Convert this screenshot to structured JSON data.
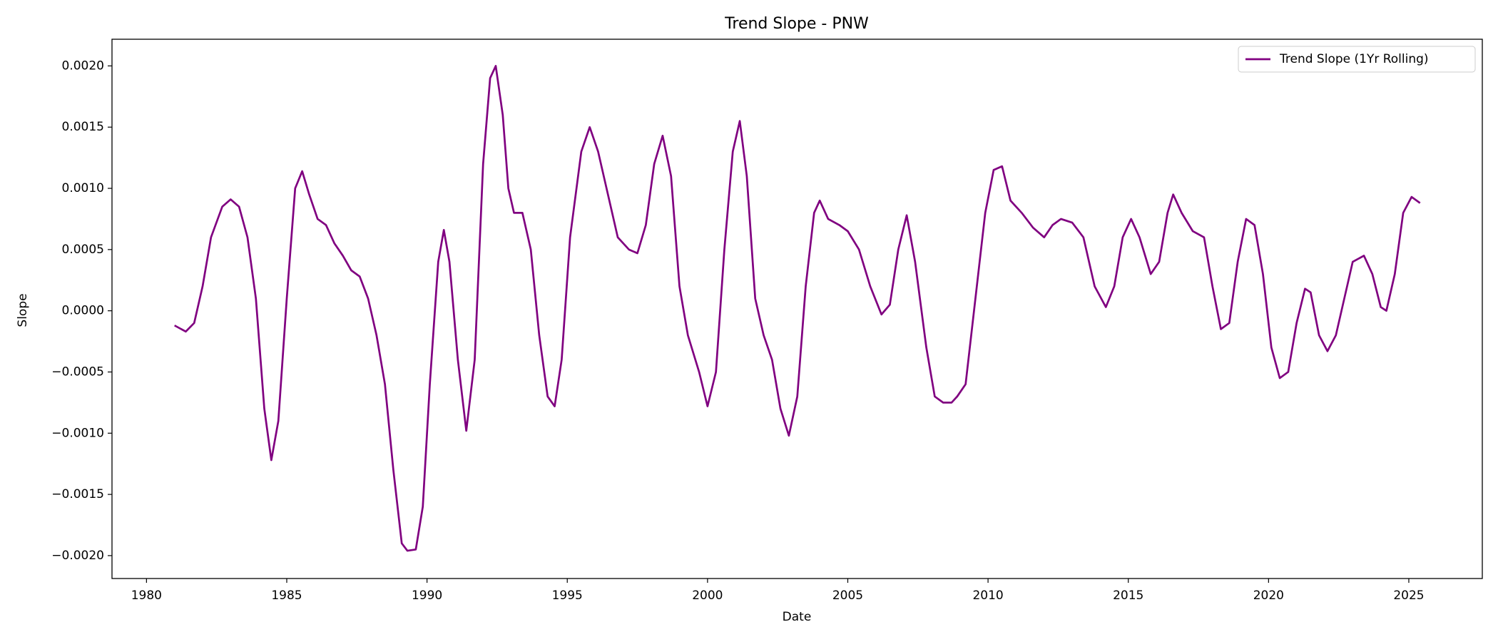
{
  "chart_data": {
    "type": "line",
    "title": "Trend Slope - PNW",
    "xlabel": "Date",
    "ylabel": "Slope",
    "x": [
      1981.0,
      1981.4,
      1981.7,
      1982.0,
      1982.3,
      1982.7,
      1983.0,
      1983.3,
      1983.6,
      1983.9,
      1984.2,
      1984.45,
      1984.7,
      1985.0,
      1985.3,
      1985.55,
      1985.8,
      1986.1,
      1986.4,
      1986.7,
      1987.0,
      1987.3,
      1987.6,
      1987.9,
      1988.2,
      1988.5,
      1988.8,
      1989.1,
      1989.3,
      1989.6,
      1989.85,
      1990.1,
      1990.4,
      1990.6,
      1990.8,
      1991.1,
      1991.4,
      1991.7,
      1992.0,
      1992.25,
      1992.45,
      1992.7,
      1992.9,
      1993.1,
      1993.4,
      1993.7,
      1994.0,
      1994.3,
      1994.55,
      1994.8,
      1995.1,
      1995.5,
      1995.8,
      1996.1,
      1996.5,
      1996.8,
      1997.2,
      1997.5,
      1997.8,
      1998.1,
      1998.4,
      1998.7,
      1999.0,
      1999.3,
      1999.7,
      2000.0,
      2000.3,
      2000.6,
      2000.9,
      2001.15,
      2001.4,
      2001.7,
      2002.0,
      2002.3,
      2002.6,
      2002.9,
      2003.2,
      2003.5,
      2003.8,
      2004.0,
      2004.3,
      2004.7,
      2005.0,
      2005.4,
      2005.8,
      2006.2,
      2006.5,
      2006.8,
      2007.1,
      2007.4,
      2007.8,
      2008.1,
      2008.4,
      2008.7,
      2008.9,
      2009.2,
      2009.5,
      2009.9,
      2010.2,
      2010.5,
      2010.8,
      2011.2,
      2011.6,
      2012.0,
      2012.3,
      2012.6,
      2013.0,
      2013.4,
      2013.8,
      2014.2,
      2014.5,
      2014.8,
      2015.1,
      2015.4,
      2015.8,
      2016.1,
      2016.4,
      2016.6,
      2016.9,
      2017.3,
      2017.7,
      2018.0,
      2018.3,
      2018.6,
      2018.9,
      2019.2,
      2019.5,
      2019.8,
      2020.1,
      2020.4,
      2020.7,
      2021.0,
      2021.3,
      2021.5,
      2021.8,
      2022.1,
      2022.4,
      2022.7,
      2023.0,
      2023.4,
      2023.7,
      2024.0,
      2024.2,
      2024.5,
      2024.8,
      2025.1,
      2025.4
    ],
    "series": [
      {
        "name": "Trend Slope (1Yr Rolling)",
        "color": "#800080",
        "values": [
          -0.00012,
          -0.00017,
          -0.0001,
          0.0002,
          0.0006,
          0.00085,
          0.00091,
          0.00085,
          0.0006,
          0.0001,
          -0.0008,
          -0.00122,
          -0.0009,
          0.0001,
          0.001,
          0.00114,
          0.00095,
          0.00075,
          0.0007,
          0.00055,
          0.00045,
          0.00033,
          0.00028,
          0.0001,
          -0.0002,
          -0.0006,
          -0.0013,
          -0.0019,
          -0.00196,
          -0.00195,
          -0.0016,
          -0.0006,
          0.0004,
          0.00066,
          0.0004,
          -0.0004,
          -0.00098,
          -0.0004,
          0.0012,
          0.0019,
          0.002,
          0.0016,
          0.001,
          0.0008,
          0.0008,
          0.0005,
          -0.0002,
          -0.0007,
          -0.00078,
          -0.0004,
          0.0006,
          0.0013,
          0.0015,
          0.0013,
          0.0009,
          0.0006,
          0.0005,
          0.00047,
          0.0007,
          0.0012,
          0.00143,
          0.0011,
          0.0002,
          -0.0002,
          -0.0005,
          -0.00078,
          -0.0005,
          0.0005,
          0.0013,
          0.00155,
          0.0011,
          0.0001,
          -0.0002,
          -0.0004,
          -0.0008,
          -0.00102,
          -0.0007,
          0.0002,
          0.0008,
          0.0009,
          0.00075,
          0.0007,
          0.00065,
          0.0005,
          0.0002,
          -3e-05,
          5e-05,
          0.0005,
          0.00078,
          0.0004,
          -0.0003,
          -0.0007,
          -0.00075,
          -0.00075,
          -0.0007,
          -0.0006,
          0.0,
          0.0008,
          0.00115,
          0.00118,
          0.0009,
          0.0008,
          0.00068,
          0.0006,
          0.0007,
          0.00075,
          0.00072,
          0.0006,
          0.0002,
          3e-05,
          0.0002,
          0.0006,
          0.00075,
          0.0006,
          0.0003,
          0.0004,
          0.0008,
          0.00095,
          0.0008,
          0.00065,
          0.0006,
          0.0002,
          -0.00015,
          -0.0001,
          0.0004,
          0.00075,
          0.0007,
          0.0003,
          -0.0003,
          -0.00055,
          -0.0005,
          -0.0001,
          0.00018,
          0.00015,
          -0.0002,
          -0.00033,
          -0.0002,
          0.0001,
          0.0004,
          0.00045,
          0.0003,
          3e-05,
          0.0,
          0.0003,
          0.0008,
          0.00093,
          0.00088
        ]
      }
    ],
    "xlim": [
      1978.77,
      2027.62
    ],
    "xticks": [
      1980,
      1985,
      1990,
      1995,
      2000,
      2005,
      2010,
      2015,
      2020,
      2025
    ],
    "ylim": [
      -0.002187,
      0.002218
    ],
    "yticks": [
      {
        "value": -0.002,
        "label": "−0.0020"
      },
      {
        "value": -0.0015,
        "label": "−0.0015"
      },
      {
        "value": -0.001,
        "label": "−0.0010"
      },
      {
        "value": -0.0005,
        "label": "−0.0005"
      },
      {
        "value": 0,
        "label": "0.0000"
      },
      {
        "value": 0.0005,
        "label": "0.0005"
      },
      {
        "value": 0.001,
        "label": "0.0010"
      },
      {
        "value": 0.0015,
        "label": "0.0015"
      },
      {
        "value": 0.002,
        "label": "0.0020"
      }
    ],
    "legend": "upper right",
    "grid": false
  }
}
